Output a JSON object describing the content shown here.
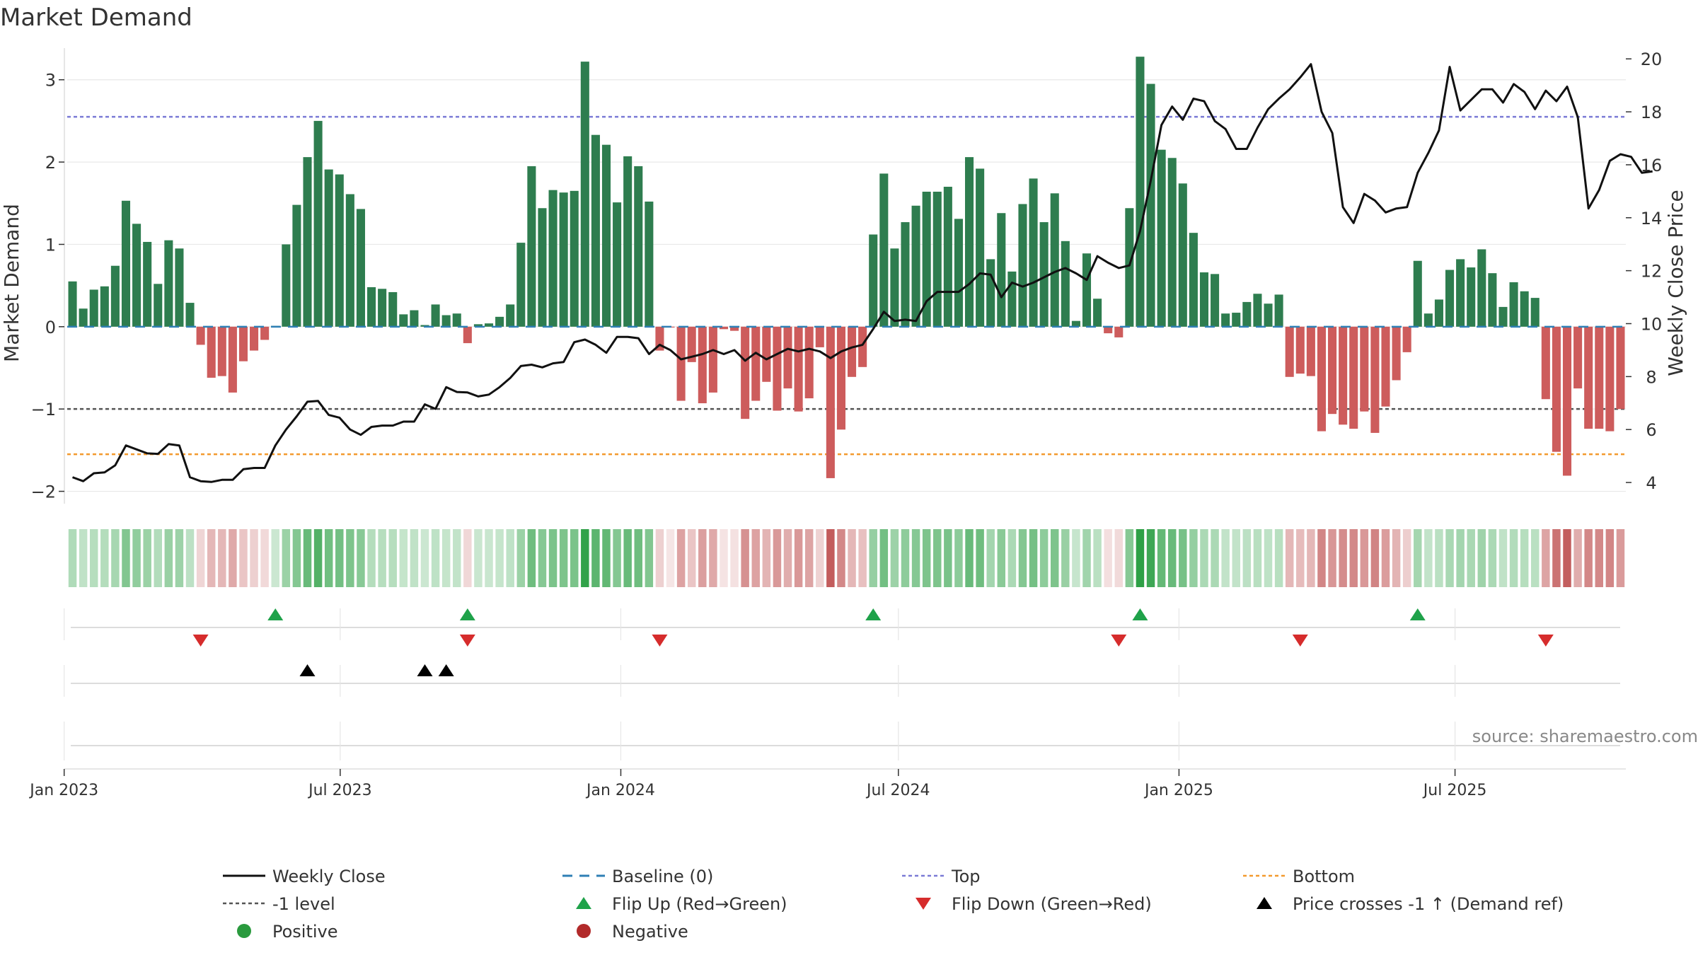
{
  "chart_data": {
    "type": "bar",
    "title": "Market Demand",
    "ylabel": "Market Demand",
    "y2label": "Weekly Close Price",
    "ylim": [
      -2.15,
      3.35
    ],
    "y2lim": [
      3.2,
      20.3
    ],
    "yticks": [
      "−2",
      "−1",
      "0",
      "1",
      "2",
      "3"
    ],
    "y2ticks": [
      "4",
      "6",
      "8",
      "10",
      "12",
      "14",
      "16",
      "18",
      "20"
    ],
    "xticks": [
      "Jan 2023",
      "Jul 2023",
      "Jan 2024",
      "Jul 2024",
      "Jan 2025",
      "Jul 2025"
    ],
    "reference_lines": {
      "top": 2.55,
      "bottom": -1.55,
      "minus_one": -1.0,
      "baseline": 0
    },
    "start_date": "2023-01-03",
    "demand": [
      0.55,
      0.22,
      0.45,
      0.49,
      0.74,
      1.53,
      1.25,
      1.03,
      0.52,
      1.05,
      0.95,
      0.29,
      -0.22,
      -0.62,
      -0.6,
      -0.8,
      -0.42,
      -0.29,
      -0.16,
      0.01,
      1.0,
      1.48,
      2.06,
      2.5,
      1.91,
      1.85,
      1.61,
      1.43,
      0.48,
      0.46,
      0.42,
      0.15,
      0.2,
      0.02,
      0.27,
      0.14,
      0.16,
      -0.2,
      0.03,
      0.04,
      0.12,
      0.27,
      1.02,
      1.95,
      1.44,
      1.66,
      1.63,
      1.65,
      3.22,
      2.33,
      2.21,
      1.51,
      2.07,
      1.95,
      1.52,
      -0.29,
      -0.01,
      -0.9,
      -0.43,
      -0.93,
      -0.8,
      -0.03,
      -0.05,
      -1.12,
      -0.9,
      -0.67,
      -1.02,
      -0.75,
      -1.03,
      -0.87,
      -0.25,
      -1.84,
      -1.25,
      -0.61,
      -0.49,
      1.12,
      1.86,
      0.95,
      1.27,
      1.47,
      1.64,
      1.64,
      1.7,
      1.31,
      2.06,
      1.92,
      0.82,
      1.38,
      0.67,
      1.49,
      1.8,
      1.27,
      1.62,
      1.04,
      0.07,
      0.89,
      0.34,
      -0.08,
      -0.13,
      1.44,
      3.28,
      2.95,
      2.15,
      2.05,
      1.74,
      1.14,
      0.66,
      0.64,
      0.16,
      0.17,
      0.3,
      0.4,
      0.28,
      0.39,
      -0.61,
      -0.57,
      -0.6,
      -1.27,
      -1.06,
      -1.19,
      -1.24,
      -1.03,
      -1.29,
      -0.97,
      -0.65,
      -0.31,
      0.8,
      0.16,
      0.33,
      0.69,
      0.82,
      0.72,
      0.94,
      0.65,
      0.24,
      0.54,
      0.43,
      0.35,
      -0.88,
      -1.52,
      -1.81,
      -0.75,
      -1.24,
      -1.24,
      -1.27,
      -1.0
    ],
    "price": [
      4.2,
      4.05,
      4.35,
      4.38,
      4.65,
      5.4,
      5.25,
      5.1,
      5.08,
      5.45,
      5.4,
      4.2,
      4.05,
      4.02,
      4.1,
      4.1,
      4.5,
      4.55,
      4.55,
      5.4,
      6.0,
      6.5,
      7.05,
      7.08,
      6.55,
      6.45,
      6.0,
      5.8,
      6.1,
      6.15,
      6.15,
      6.3,
      6.3,
      6.95,
      6.78,
      7.6,
      7.42,
      7.4,
      7.25,
      7.32,
      7.6,
      7.95,
      8.4,
      8.45,
      8.35,
      8.5,
      8.55,
      9.3,
      9.4,
      9.2,
      8.9,
      9.5,
      9.5,
      9.45,
      8.85,
      9.2,
      9.0,
      8.65,
      8.75,
      8.85,
      9.0,
      8.85,
      9.0,
      8.6,
      8.9,
      8.65,
      8.85,
      9.05,
      8.95,
      9.05,
      8.95,
      8.7,
      8.95,
      9.1,
      9.2,
      9.8,
      10.45,
      10.1,
      10.15,
      10.1,
      10.85,
      11.2,
      11.2,
      11.2,
      11.5,
      11.9,
      11.85,
      11.0,
      11.55,
      11.4,
      11.55,
      11.75,
      11.95,
      12.1,
      11.9,
      11.65,
      12.55,
      12.3,
      12.1,
      12.2,
      13.5,
      15.4,
      17.5,
      18.2,
      17.7,
      18.5,
      18.4,
      17.65,
      17.35,
      16.6,
      16.6,
      17.4,
      18.1,
      18.5,
      18.85,
      19.3,
      19.8,
      18.0,
      17.2,
      14.4,
      13.8,
      14.9,
      14.65,
      14.2,
      14.35,
      14.4,
      15.7,
      16.45,
      17.3,
      19.7,
      18.05,
      18.45,
      18.85,
      18.85,
      18.35,
      19.05,
      18.75,
      18.1,
      18.8,
      18.4,
      18.95,
      17.8,
      14.35,
      15.05,
      16.15,
      16.4,
      16.3,
      15.7,
      15.75
    ],
    "flip_up_weeks": [
      19,
      37,
      75,
      100,
      126
    ],
    "flip_down_weeks": [
      12,
      37,
      55,
      98,
      115,
      138
    ],
    "price_cross_weeks": [
      22,
      33,
      35
    ],
    "legend": [
      {
        "label": "Weekly Close",
        "symbol": "solid-line",
        "color": "#111111"
      },
      {
        "label": "Baseline (0)",
        "symbol": "dashed-line",
        "color": "#2f7fb5"
      },
      {
        "label": "Top",
        "symbol": "dotted-line",
        "color": "#7b7bd6"
      },
      {
        "label": "Bottom",
        "symbol": "dotted-line",
        "color": "#f39a2e"
      },
      {
        "label": "-1 level",
        "symbol": "dotted-line",
        "color": "#555555"
      },
      {
        "label": "Flip Up (Red→Green)",
        "symbol": "triangle-up",
        "color": "#1fa24a"
      },
      {
        "label": "Flip Down (Green→Red)",
        "symbol": "triangle-down",
        "color": "#d62c2c"
      },
      {
        "label": "Price crosses -1 ↑ (Demand ref)",
        "symbol": "triangle-up",
        "color": "#000000"
      },
      {
        "label": "Positive",
        "symbol": "dot",
        "color": "#2a9a3e"
      },
      {
        "label": "Negative",
        "symbol": "dot",
        "color": "#b22a2a"
      }
    ],
    "annotation": "source: sharemaestro.com"
  },
  "colors": {
    "positive_bar": "#2e7d4f",
    "negative_bar": "#cd5c5c",
    "price_line": "#111111",
    "grid": "#e8e8e8"
  }
}
